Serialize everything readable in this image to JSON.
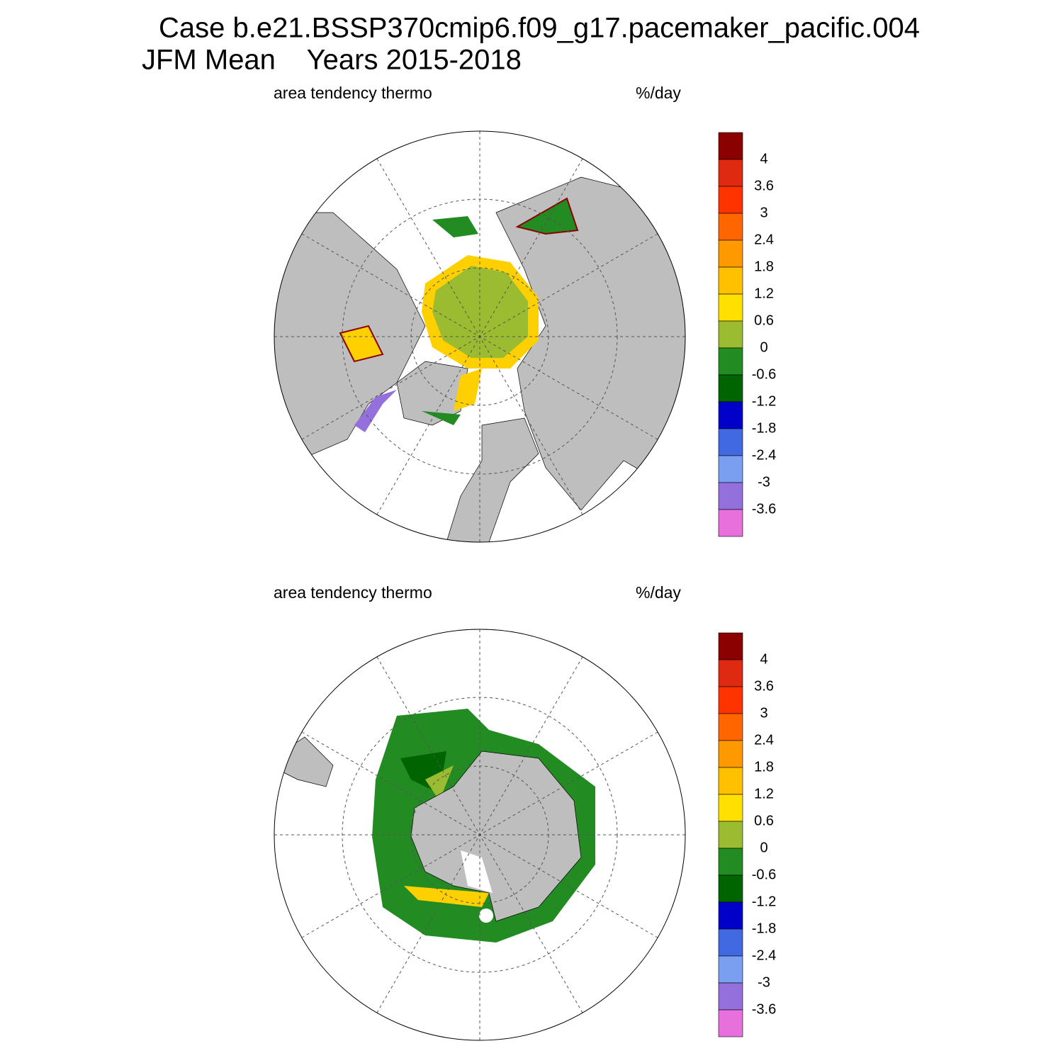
{
  "header": {
    "line1": "Case b.e21.BSSP370cmip6.f09_g17.pacemaker_pacific.004",
    "line2": "JFM Mean    Years 2015-2018"
  },
  "panels": [
    {
      "left_label": "area tendency thermo",
      "right_label": "%/day"
    },
    {
      "left_label": "area tendency thermo",
      "right_label": "%/day"
    }
  ],
  "colorbar": {
    "levels": [
      4,
      3.6,
      3,
      2.4,
      1.8,
      1.2,
      0.6,
      0,
      -0.6,
      -1.2,
      -1.8,
      -2.4,
      -3,
      -3.6
    ],
    "colors": [
      "#8b0000",
      "#dd2a10",
      "#ff3300",
      "#ff6600",
      "#ff9900",
      "#ffc000",
      "#ffe000",
      "#9bbb30",
      "#228b22",
      "#006400",
      "#0000c8",
      "#4169e1",
      "#7a9ef0",
      "#9370db",
      "#e870dc"
    ]
  }
}
